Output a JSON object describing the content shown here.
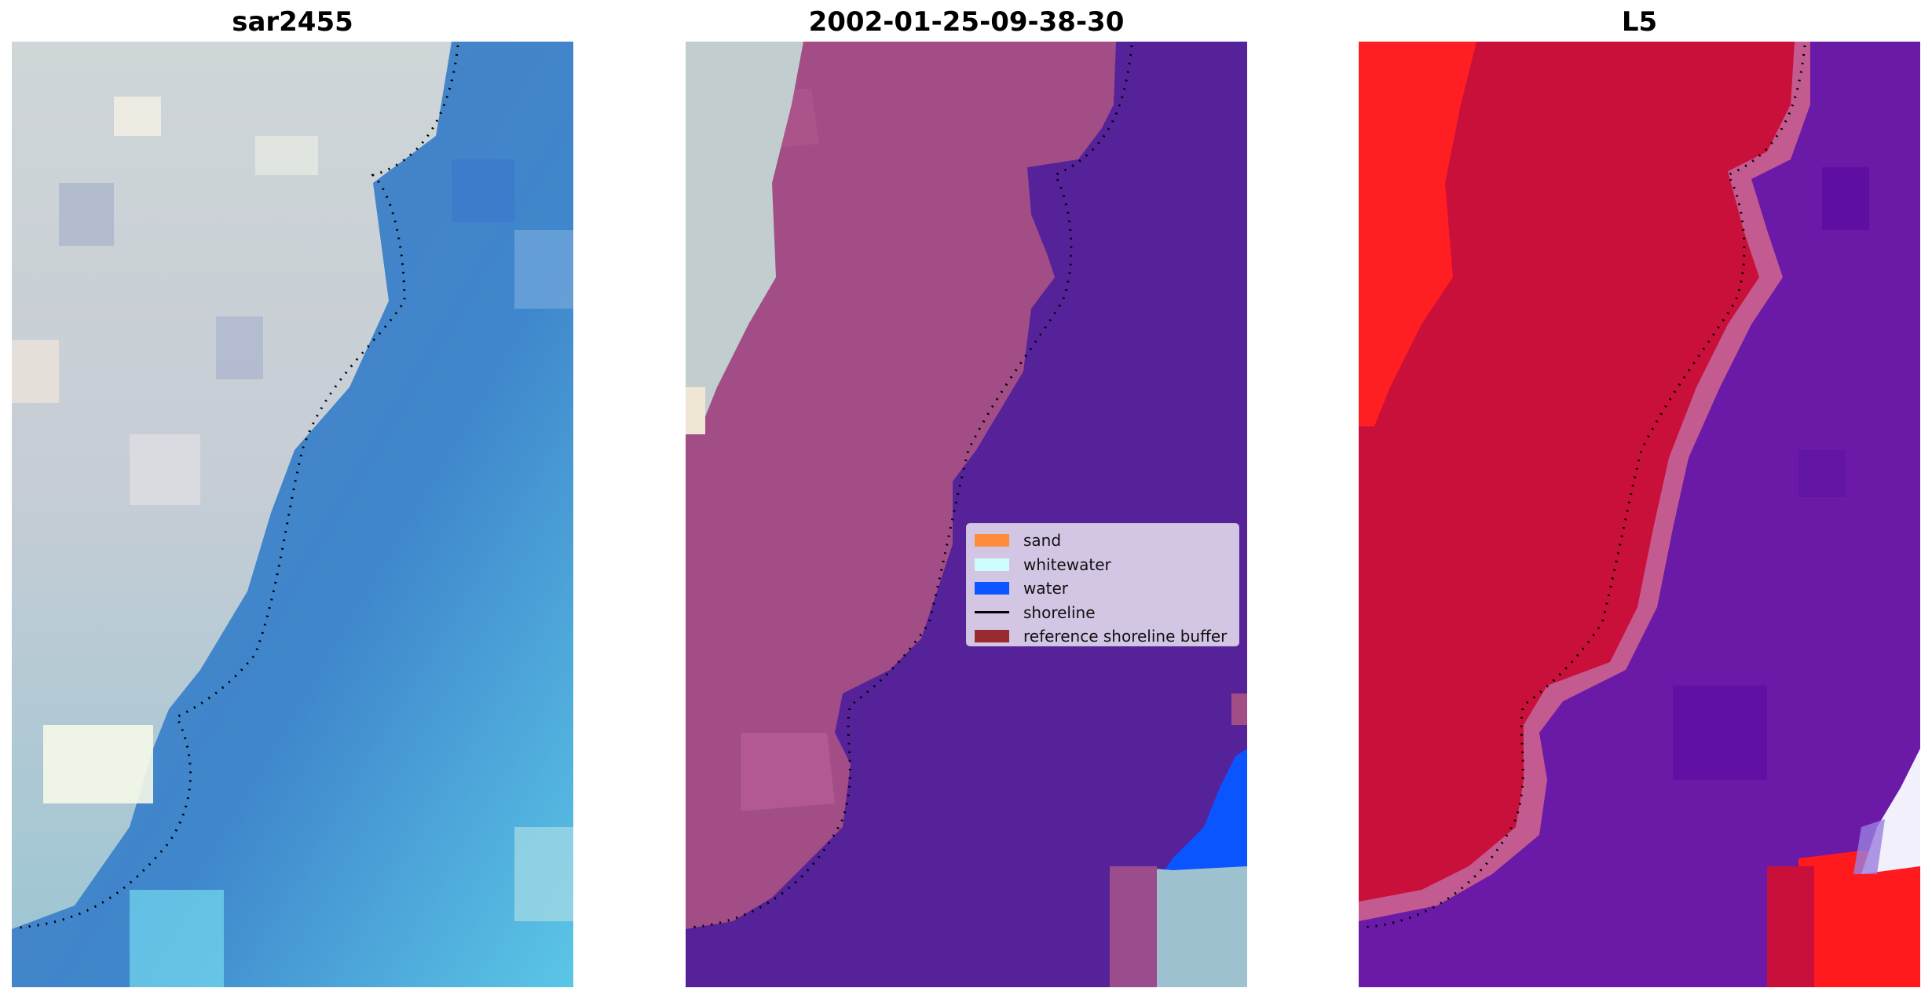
{
  "panels": [
    {
      "title": "sar2455"
    },
    {
      "title": "2002-01-25-09-38-30"
    },
    {
      "title": "L5"
    }
  ],
  "legend": {
    "items": [
      {
        "label": "sand",
        "color": "#ff8c3a",
        "type": "patch"
      },
      {
        "label": "whitewater",
        "color": "#cffcff",
        "type": "patch"
      },
      {
        "label": "water",
        "color": "#0a55ff",
        "type": "patch"
      },
      {
        "label": "shoreline",
        "color": "#000000",
        "type": "line"
      },
      {
        "label": "reference shoreline buffer",
        "color": "#992a2e",
        "type": "patch"
      }
    ]
  },
  "colors": {
    "overlay_land": "#a24d86",
    "overlay_water": "#55229a",
    "l5_land": "#c8103a",
    "l5_water": "#6a1aa6",
    "rgb_land": "#c9d0d4",
    "rgb_water": "#3f7fc0"
  }
}
